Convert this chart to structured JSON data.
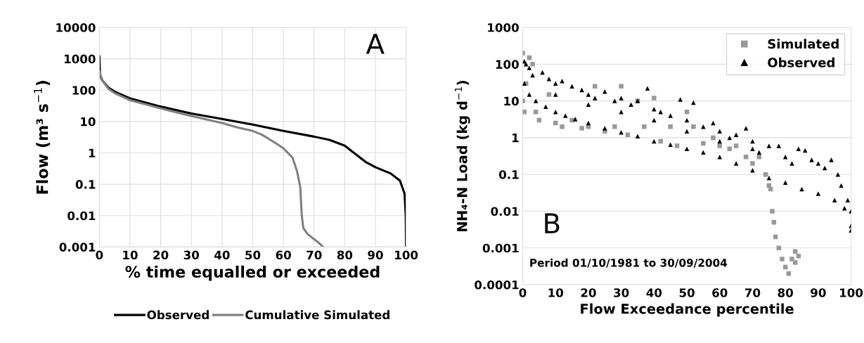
{
  "chart_data": [
    {
      "type": "line",
      "xlabel": "% time equalled or exceeded",
      "ylabel": "Flow (m³ s$^{−1}$)",
      "annotations": [
        "A"
      ],
      "log": "y",
      "grid": true,
      "legend": "bottom",
      "xlim": [
        0,
        100
      ],
      "ylim": [
        0.001,
        10000
      ],
      "xticks": [
        0,
        10,
        20,
        30,
        40,
        50,
        60,
        70,
        80,
        90,
        100
      ],
      "yticks": [
        0.001,
        0.01,
        0.1,
        1,
        10,
        100,
        1000,
        10000
      ],
      "series": [
        {
          "name": "Observed",
          "color": "#000000",
          "x": [
            0,
            0.2,
            1,
            3,
            5,
            10,
            20,
            30,
            40,
            50,
            60,
            70,
            75,
            80,
            83,
            87,
            90,
            95,
            98,
            99.5,
            99.9,
            100
          ],
          "values": [
            1200,
            300,
            200,
            120,
            90,
            55,
            30,
            18,
            12,
            8,
            5,
            3.3,
            2.6,
            1.7,
            1.0,
            0.5,
            0.35,
            0.22,
            0.13,
            0.05,
            0.01,
            0.001
          ]
        },
        {
          "name": "Cumulative Simulated",
          "color": "#808080",
          "x": [
            0,
            1,
            3,
            5,
            10,
            20,
            30,
            40,
            45,
            50,
            53,
            57,
            60,
            63,
            64.5,
            65.5,
            66,
            66.5,
            68,
            71,
            73
          ],
          "values": [
            400,
            200,
            110,
            80,
            48,
            26,
            15,
            9,
            6.5,
            5,
            3.8,
            2.2,
            1.4,
            0.7,
            0.25,
            0.08,
            0.01,
            0.004,
            0.0025,
            0.0015,
            0.001
          ]
        }
      ]
    },
    {
      "type": "scatter",
      "xlabel": "Flow Exceedance percentile",
      "ylabel": "NH₄-N Load (kg d$^{−1}$)",
      "annotations": [
        "B",
        "Period 01/10/1981 to 30/09/2004"
      ],
      "log": "y",
      "grid": "y",
      "legend": "top right",
      "xlim": [
        0,
        100
      ],
      "ylim": [
        0.0001,
        1000
      ],
      "xticks": [
        0,
        10,
        20,
        30,
        40,
        50,
        60,
        70,
        80,
        90,
        100
      ],
      "yticks": [
        0.0001,
        0.001,
        0.01,
        0.1,
        1,
        10,
        100,
        1000
      ],
      "series": [
        {
          "name": "Simulated",
          "color": "#999999",
          "marker": "square",
          "x": [
            0,
            0,
            0.5,
            1,
            2,
            3,
            4,
            5,
            8,
            10,
            12,
            15,
            18,
            20,
            22,
            25,
            28,
            30,
            32,
            35,
            37,
            40,
            42,
            45,
            47,
            50,
            52,
            55,
            58,
            60,
            63,
            65,
            68,
            70,
            72,
            74,
            75,
            75.5,
            76,
            76.5,
            77,
            78,
            79,
            80,
            81,
            82,
            83,
            84,
            83
          ],
          "values": [
            200,
            10,
            5,
            30,
            150,
            100,
            5,
            3,
            15,
            2.5,
            2,
            3,
            1.8,
            2,
            25,
            1.5,
            2,
            25,
            1.2,
            10,
            2,
            12,
            0.8,
            2,
            0.6,
            5,
            2,
            0.7,
            1,
            0.6,
            0.5,
            0.6,
            0.3,
            0.2,
            0.3,
            0.1,
            0.05,
            0.04,
            0.01,
            0.005,
            0.002,
            0.001,
            0.0005,
            0.0003,
            0.0002,
            0.0005,
            0.0008,
            0.0006,
            0.0004
          ]
        },
        {
          "name": "Observed",
          "color": "#000000",
          "marker": "triangle",
          "x": [
            0.5,
            2,
            4,
            7,
            10,
            13,
            16,
            20,
            25,
            30,
            35,
            40,
            45,
            50,
            55,
            60,
            65,
            70,
            75,
            80,
            85,
            90,
            95,
            98,
            100,
            0.5,
            1,
            2,
            3,
            6,
            8,
            10,
            12,
            15,
            18,
            20,
            22,
            25,
            28,
            30,
            33,
            35,
            38,
            40,
            42,
            45,
            48,
            50,
            52,
            55,
            58,
            60,
            63,
            65,
            68,
            70,
            72,
            75,
            78,
            80,
            82,
            84,
            86,
            88,
            90,
            92,
            94,
            96,
            97,
            99,
            100,
            100,
            10,
            20,
            30,
            40,
            50,
            60,
            70
          ],
          "values": [
            30,
            15,
            10,
            7,
            5,
            4,
            3.2,
            2.5,
            1.8,
            1.4,
            1.1,
            0.8,
            0.65,
            0.5,
            0.4,
            0.3,
            0.2,
            0.13,
            0.08,
            0.06,
            0.04,
            0.03,
            0.02,
            0.012,
            0.01,
            120,
            100,
            80,
            50,
            60,
            40,
            30,
            35,
            25,
            20,
            15,
            12,
            18,
            10,
            12,
            8,
            10,
            22,
            6,
            5,
            4,
            11,
            3,
            9,
            2,
            2.5,
            1.5,
            1,
            1.2,
            1.8,
            0.8,
            0.4,
            0.6,
            0.6,
            0.3,
            0.2,
            0.5,
            0.45,
            0.25,
            0.2,
            0.15,
            0.25,
            0.1,
            0.05,
            0.02,
            0.004,
            0.003,
            15,
            8,
            5,
            3,
            1.5,
            0.8,
            0.5
          ]
        }
      ]
    }
  ]
}
